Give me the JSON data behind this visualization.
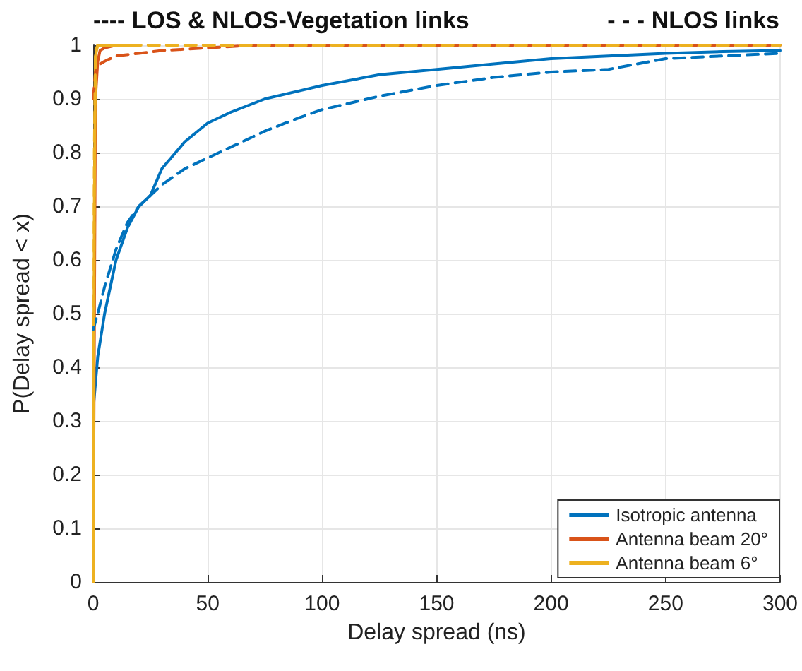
{
  "chart_data": {
    "type": "line",
    "xlabel": "Delay spread (ns)",
    "ylabel": "P(Delay spread < x)",
    "annotations": [
      "---- LOS & NLOS-Vegetation links",
      "- - - NLOS links"
    ],
    "xlim": [
      0,
      300
    ],
    "xticks": [
      0,
      50,
      100,
      150,
      200,
      250,
      300
    ],
    "ylim": [
      0,
      1
    ],
    "yticks": [
      0,
      0.1,
      0.2,
      0.3,
      0.4,
      0.5,
      0.6,
      0.7,
      0.8,
      0.9,
      1
    ],
    "grid": true,
    "legend": "bottom right",
    "marker": "none",
    "series": [
      {
        "name": "Isotropic antenna",
        "color": "#0072bd",
        "line_style": "solid",
        "x": [
          0,
          2,
          5,
          10,
          15,
          20,
          25,
          30,
          40,
          50,
          60,
          75,
          90,
          100,
          125,
          150,
          175,
          200,
          225,
          250,
          275,
          300
        ],
        "values": [
          0.32,
          0.42,
          0.5,
          0.6,
          0.66,
          0.7,
          0.72,
          0.77,
          0.82,
          0.855,
          0.875,
          0.9,
          0.915,
          0.925,
          0.945,
          0.955,
          0.965,
          0.975,
          0.98,
          0.985,
          0.988,
          0.99
        ]
      },
      {
        "name": "Antenna beam 20°",
        "color": "#d95319",
        "line_style": "solid",
        "x": [
          0,
          1,
          2,
          3,
          5,
          10,
          20
        ],
        "values": [
          0,
          0.9,
          0.97,
          0.99,
          0.995,
          1,
          1
        ]
      },
      {
        "name": "Antenna beam 6°",
        "color": "#edb120",
        "line_style": "solid",
        "x": [
          0,
          0.5,
          1,
          2,
          5,
          10,
          20
        ],
        "values": [
          0,
          0.7,
          0.98,
          1,
          1,
          1,
          1
        ]
      },
      {
        "color": "#0072bd",
        "line_style": "dashed",
        "x": [
          0,
          2,
          5,
          10,
          15,
          20,
          25,
          30,
          40,
          50,
          60,
          75,
          90,
          100,
          125,
          150,
          175,
          200,
          225,
          250,
          275,
          300
        ],
        "values": [
          0.47,
          0.5,
          0.55,
          0.62,
          0.67,
          0.7,
          0.72,
          0.74,
          0.77,
          0.79,
          0.81,
          0.84,
          0.865,
          0.88,
          0.905,
          0.925,
          0.94,
          0.95,
          0.955,
          0.975,
          0.98,
          0.985
        ]
      },
      {
        "color": "#d95319",
        "line_style": "dashed",
        "x": [
          0,
          1,
          3,
          5,
          10,
          20,
          30,
          50,
          70,
          100,
          200,
          300
        ],
        "values": [
          0.9,
          0.95,
          0.965,
          0.97,
          0.98,
          0.985,
          0.99,
          0.995,
          1,
          1,
          1,
          1
        ]
      },
      {
        "color": "#edb120",
        "line_style": "dashed",
        "x": [
          0,
          0.5,
          1,
          2,
          5,
          300
        ],
        "values": [
          0,
          0.8,
          0.99,
          1,
          1,
          1
        ]
      }
    ]
  }
}
